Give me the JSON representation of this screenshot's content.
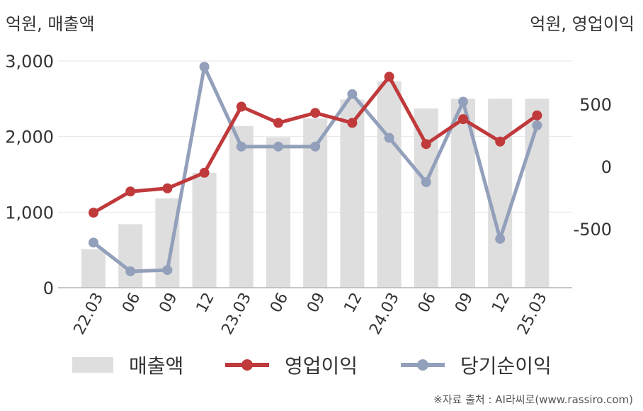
{
  "units": {
    "left": "억원, 매출액",
    "right": "억원, 영업이익"
  },
  "source": "※자료 출처 : AI라씨로(www.rassiro.com)",
  "legend": {
    "revenue": "매출액",
    "operating": "영업이익",
    "net": "당기순이익"
  },
  "chart_data": {
    "type": "bar+line",
    "categories": [
      "22.03",
      "06",
      "09",
      "12",
      "23.03",
      "06",
      "09",
      "12",
      "24.03",
      "06",
      "09",
      "12",
      "25.03"
    ],
    "y_left": {
      "ylim": [
        0,
        3000
      ],
      "ticks": [
        "0",
        "1,000",
        "2,000",
        "3,000"
      ],
      "tick_values": [
        0,
        1000,
        2000,
        3000
      ]
    },
    "y_right": {
      "ylim": [
        -1000,
        1000
      ],
      "ticks": [
        "-500",
        "0",
        "500"
      ],
      "tick_values": [
        -500,
        0,
        500
      ]
    },
    "series": [
      {
        "name": "매출액",
        "kind": "bar",
        "axis": "left",
        "color": "#dedede",
        "values": [
          510,
          840,
          1180,
          1520,
          2140,
          1990,
          2240,
          2490,
          2730,
          2370,
          2500,
          2500,
          2500
        ]
      },
      {
        "name": "영업이익",
        "kind": "line",
        "axis": "right",
        "color": "#c0393b",
        "values": [
          -370,
          -200,
          -175,
          -50,
          480,
          350,
          430,
          350,
          720,
          180,
          380,
          200,
          410
        ]
      },
      {
        "name": "당기순이익",
        "kind": "line",
        "axis": "right",
        "color": "#93a0bb",
        "values": [
          -610,
          -840,
          -830,
          800,
          160,
          160,
          160,
          580,
          230,
          -125,
          520,
          -580,
          330
        ]
      }
    ]
  }
}
